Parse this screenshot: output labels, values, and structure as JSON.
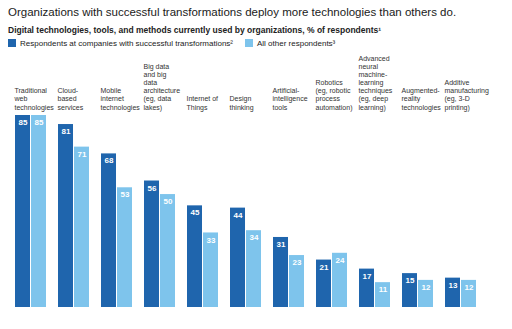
{
  "chart_data": {
    "type": "bar",
    "title": "Organizations with successful transformations deploy more technologies than others do.",
    "subtitle": "Digital technologies, tools, and methods currently used by organizations, % of respondents¹",
    "categories": [
      "Traditional web technologies",
      "Cloud-based services",
      "Mobile internet technologies",
      "Big data and big data architecture (eg, data lakes)",
      "Internet of Things",
      "Design thinking",
      "Artificial-intelligence tools",
      "Robotics (eg, robotic process automation)",
      "Advanced neural machine-learning techniques (eg, deep learning)",
      "Augmented-reality technologies",
      "Additive manufacturing (eg, 3-D printing)"
    ],
    "series": [
      {
        "name": "Respondents at companies with successful transformations²",
        "color": "#1f65ad",
        "values": [
          85,
          81,
          68,
          56,
          45,
          44,
          31,
          21,
          17,
          15,
          13
        ]
      },
      {
        "name": "All other respondents³",
        "color": "#7ec4ec",
        "values": [
          85,
          71,
          53,
          50,
          33,
          34,
          23,
          24,
          11,
          12,
          12
        ]
      }
    ],
    "ylim": [
      0,
      85
    ],
    "legend": "top",
    "data_labels": true,
    "tick_labels": false
  }
}
